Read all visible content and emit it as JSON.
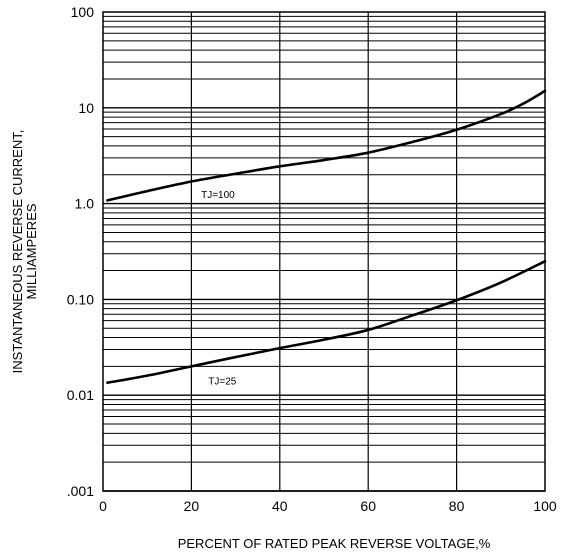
{
  "chart_data": {
    "type": "line",
    "xlabel": "PERCENT OF RATED PEAK REVERSE VOLTAGE,%",
    "ylabel": [
      "INSTANTANEOUS REVERSE CURRENT,",
      "MILLIAMPERES"
    ],
    "xlim": [
      0,
      100
    ],
    "ylim": [
      0.001,
      100
    ],
    "yscale": "log",
    "grid": true,
    "x_ticks": [
      0,
      20,
      40,
      60,
      80,
      100
    ],
    "x_tick_labels": [
      "0",
      "20",
      "40",
      "60",
      "80",
      "100"
    ],
    "y_ticks": [
      0.001,
      0.01,
      0.1,
      1,
      10,
      100
    ],
    "y_tick_labels": [
      ".001",
      "0.01",
      "0.10",
      "1.0",
      "10",
      "100"
    ],
    "series": [
      {
        "label": "TJ=100",
        "x": [
          1,
          10,
          20,
          30,
          40,
          50,
          60,
          70,
          80,
          90,
          95,
          100
        ],
        "y": [
          1.08,
          1.35,
          1.7,
          2.05,
          2.45,
          2.85,
          3.4,
          4.4,
          5.9,
          8.6,
          11.0,
          15.0
        ]
      },
      {
        "label": "TJ=25",
        "x": [
          1,
          10,
          20,
          30,
          40,
          50,
          60,
          70,
          80,
          90,
          100
        ],
        "y": [
          0.0135,
          0.016,
          0.02,
          0.025,
          0.031,
          0.038,
          0.048,
          0.068,
          0.098,
          0.15,
          0.25
        ]
      }
    ]
  }
}
